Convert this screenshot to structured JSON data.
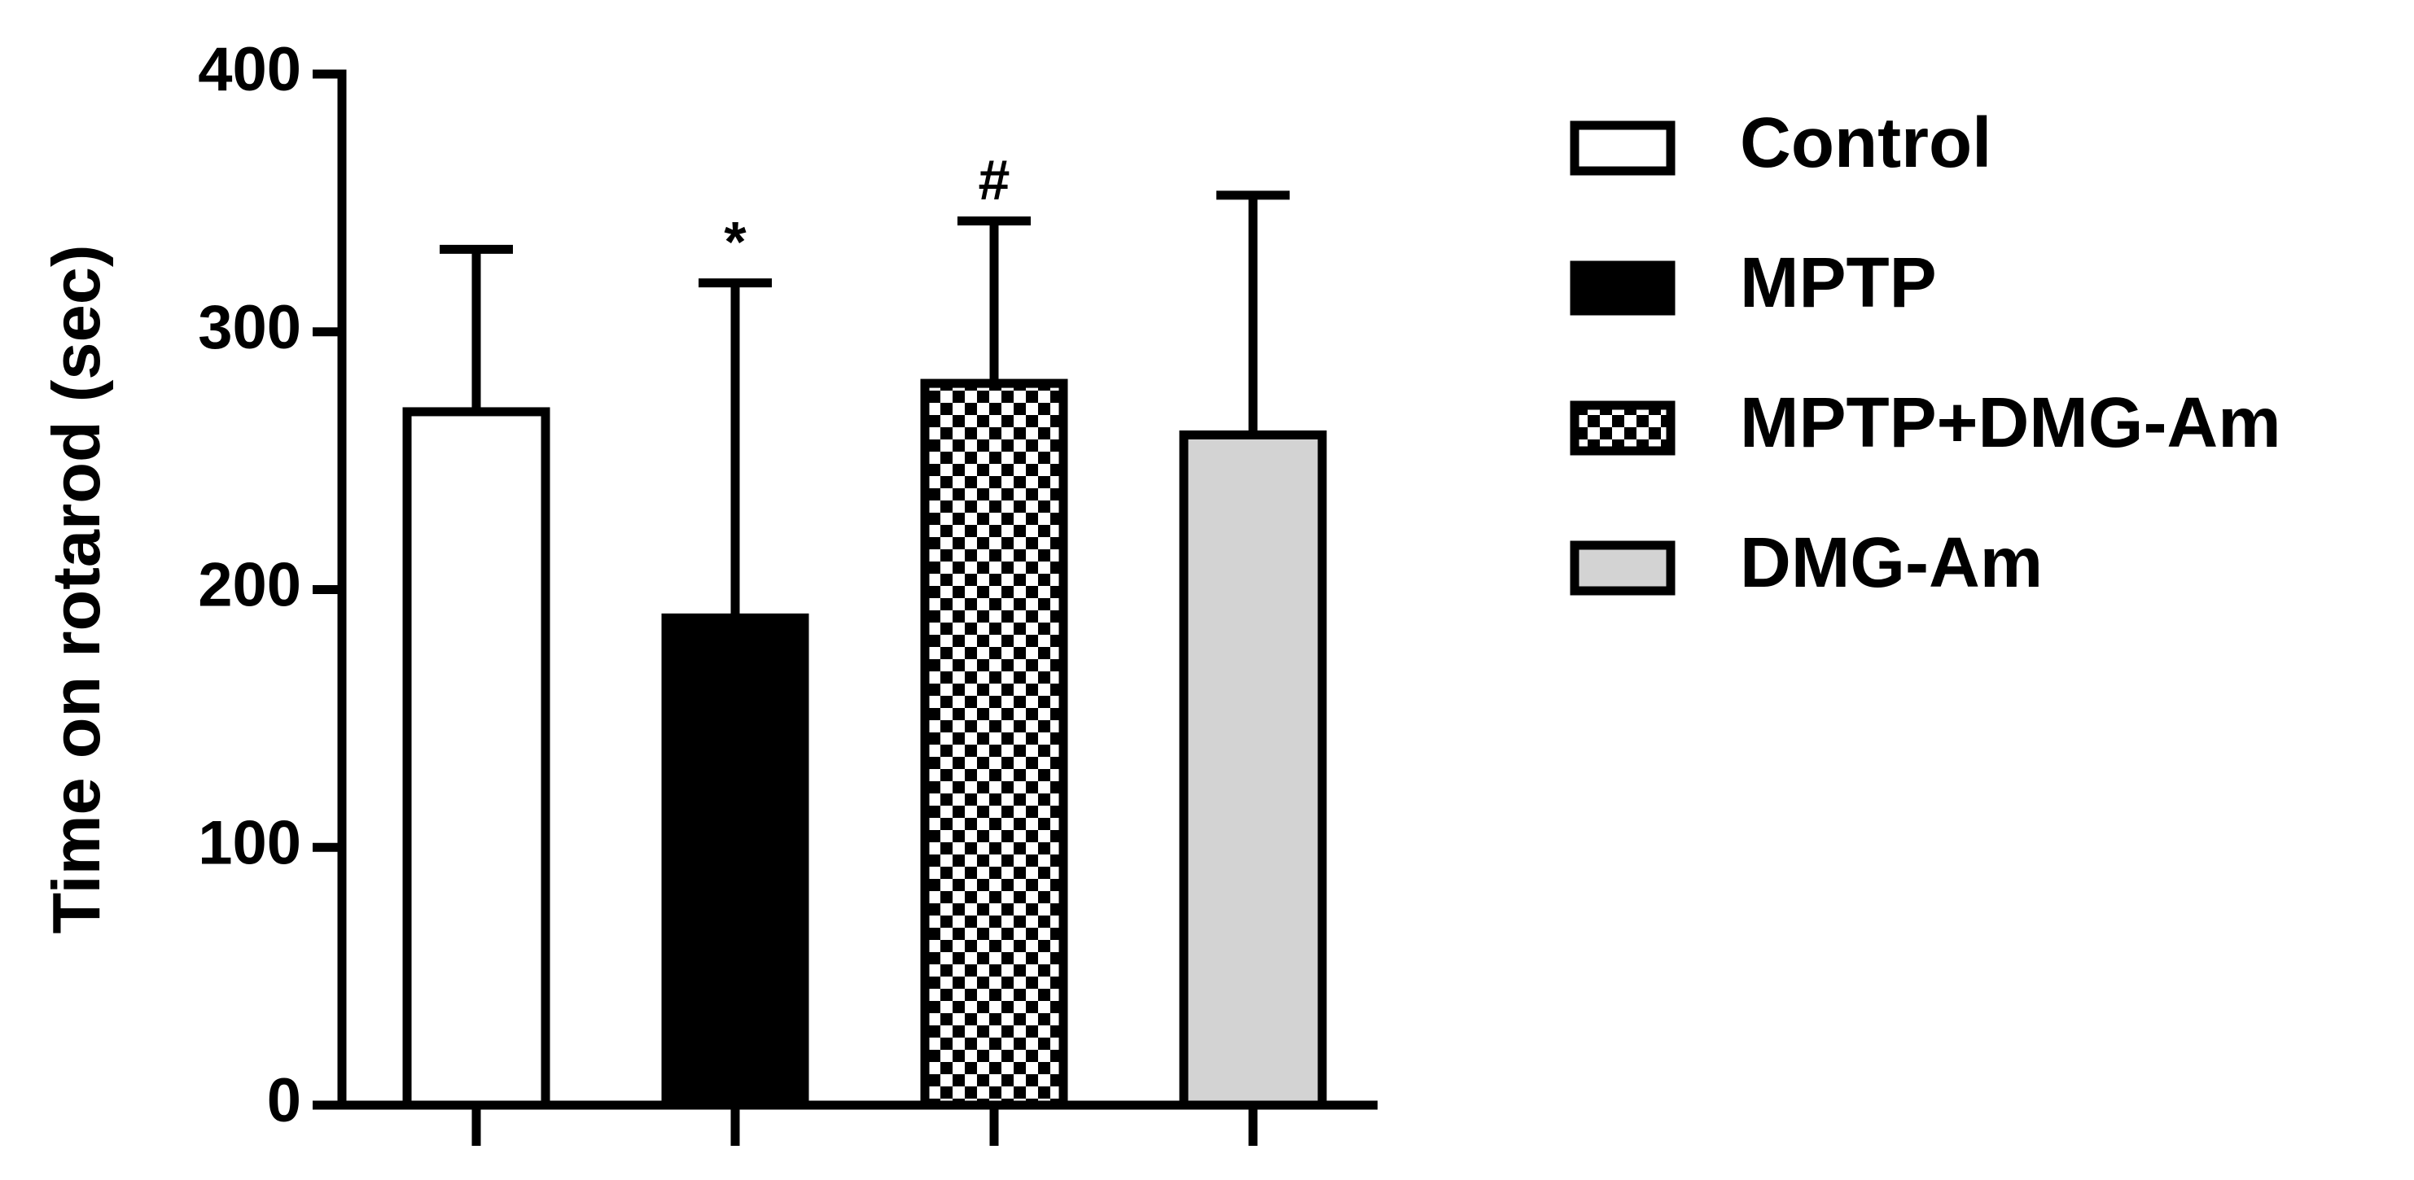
{
  "chart_data": {
    "type": "bar",
    "ylabel": "Time on rotarod (sec)",
    "ylim": [
      0,
      400
    ],
    "yticks": [
      0,
      100,
      200,
      300,
      400
    ],
    "series": [
      {
        "name": "Control",
        "color": "#ffffff",
        "values": [
          269
        ],
        "errors": [
          63
        ]
      },
      {
        "name": "MPTP",
        "color": "#000000",
        "values": [
          189
        ],
        "errors": [
          130
        ],
        "annotations": [
          "*"
        ]
      },
      {
        "name": "MPTP+DMG-Am",
        "color": "#000000",
        "pattern": "checkerboard",
        "values": [
          280
        ],
        "errors": [
          63
        ],
        "annotations": [
          "#"
        ]
      },
      {
        "name": "DMG-Am",
        "color": "#d3d3d3",
        "values": [
          260
        ],
        "errors": [
          93
        ]
      }
    ],
    "legend": "right"
  }
}
